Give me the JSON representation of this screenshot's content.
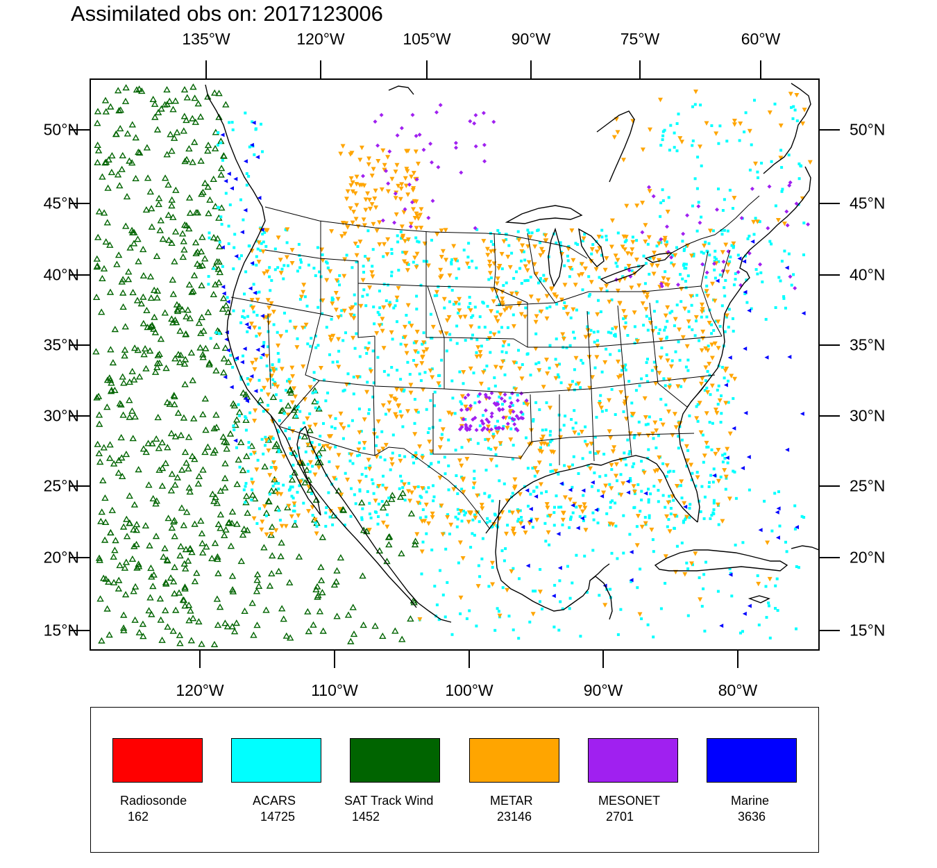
{
  "title": "Assimilated obs on: 2017123006",
  "top_lon_labels": [
    "135°W",
    "120°W",
    "105°W",
    "90°W",
    "75°W",
    "60°W"
  ],
  "bottom_lon_labels": [
    "120°W",
    "110°W",
    "100°W",
    "90°W",
    "80°W"
  ],
  "lat_labels": [
    "50°N",
    "45°N",
    "40°N",
    "35°N",
    "30°N",
    "25°N",
    "20°N",
    "15°N"
  ],
  "legend": [
    {
      "name": "Radiosonde",
      "count": "162",
      "color": "#ff0000"
    },
    {
      "name": "ACARS",
      "count": "14725",
      "color": "#00ffff"
    },
    {
      "name": "SAT Track Wind",
      "count": "1452",
      "color": "#006400"
    },
    {
      "name": "METAR",
      "count": "23146",
      "color": "#ffa500"
    },
    {
      "name": "MESONET",
      "count": "2701",
      "color": "#a020f0"
    },
    {
      "name": "Marine",
      "count": "3636",
      "color": "#0000ff"
    }
  ],
  "colors": {
    "acars": "#00ffff",
    "satwind": "#006400",
    "metar": "#ffa500",
    "mesonet": "#a020f0",
    "marine": "#0000ff",
    "coast": "#000000"
  }
}
